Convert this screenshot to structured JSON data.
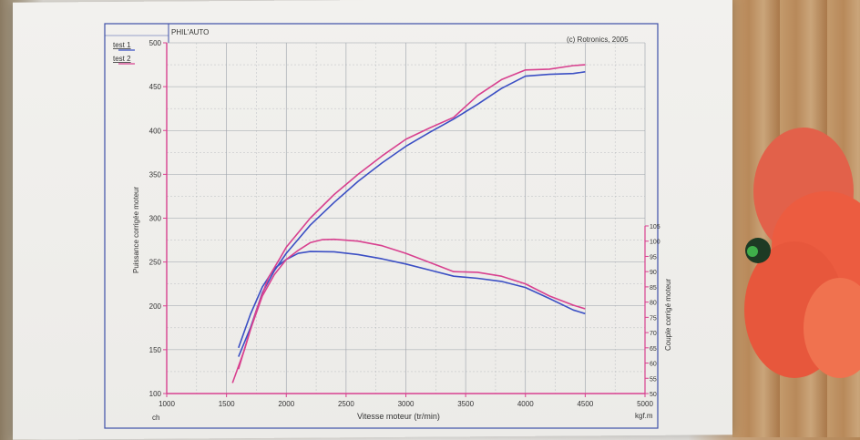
{
  "header": {
    "left": "PHIL'AUTO",
    "right": "(c) Rotronics, 2005"
  },
  "legend": [
    {
      "label": "test 1",
      "color": "#3b4fc4"
    },
    {
      "label": "test 2",
      "color": "#d8418f"
    }
  ],
  "colors": {
    "series1": "#3b4fc4",
    "series2": "#d8418f",
    "frame": "#3e4fa8",
    "grid": "#9aa0a8"
  },
  "chart_data": {
    "type": "line",
    "xlabel": "Vitesse moteur (tr/min)",
    "ylabel_left": "Puissance corrigée moteur",
    "ylabel_right": "Couple corrigé moteur",
    "unit_left": "ch",
    "unit_right": "kgf.m",
    "xlim": [
      1000,
      5000
    ],
    "ylim_left": [
      100,
      500
    ],
    "ylim_right": [
      50,
      105
    ],
    "x_ticks": [
      "1000",
      "1500",
      "2000",
      "2500",
      "3000",
      "3500",
      "4000",
      "4500",
      "5000"
    ],
    "y_left_ticks": [
      "100",
      "150",
      "200",
      "250",
      "300",
      "350",
      "400",
      "450",
      "500"
    ],
    "y_right_ticks": [
      "50",
      "55",
      "60",
      "65",
      "70",
      "75",
      "80",
      "85",
      "90",
      "95",
      "100",
      "105"
    ],
    "grid": true,
    "power_series": [
      {
        "name": "test 1",
        "axis": "left",
        "x": [
          1600,
          1700,
          1800,
          1900,
          2000,
          2200,
          2400,
          2600,
          2800,
          3000,
          3200,
          3400,
          3600,
          3800,
          4000,
          4200,
          4400,
          4500
        ],
        "y": [
          142,
          175,
          215,
          240,
          260,
          292,
          318,
          342,
          363,
          382,
          398,
          413,
          430,
          448,
          462,
          464,
          465,
          467
        ]
      },
      {
        "name": "test 2",
        "axis": "left",
        "x": [
          1550,
          1650,
          1750,
          1850,
          1950,
          2000,
          2200,
          2400,
          2600,
          2800,
          3000,
          3200,
          3400,
          3600,
          3800,
          4000,
          4200,
          4400,
          4500
        ],
        "y": [
          112,
          150,
          195,
          232,
          255,
          267,
          300,
          327,
          350,
          371,
          390,
          403,
          415,
          440,
          458,
          469,
          470,
          474,
          475
        ]
      }
    ],
    "torque_series": [
      {
        "name": "test 1",
        "axis": "right",
        "x": [
          1600,
          1700,
          1800,
          1900,
          2000,
          2100,
          2200,
          2400,
          2600,
          2800,
          3000,
          3200,
          3400,
          3600,
          3800,
          4000,
          4200,
          4400,
          4500
        ],
        "y": [
          65,
          76,
          85,
          91,
          94,
          96,
          96.6,
          96.5,
          95.6,
          94.2,
          92.5,
          90.5,
          88.5,
          87.8,
          86.8,
          84.8,
          81.2,
          77.4,
          76.2
        ]
      },
      {
        "name": "test 2",
        "axis": "right",
        "x": [
          1600,
          1700,
          1800,
          1900,
          2000,
          2100,
          2200,
          2300,
          2400,
          2600,
          2800,
          3000,
          3200,
          3400,
          3600,
          3800,
          4000,
          4200,
          4400,
          4500
        ],
        "y": [
          58,
          71,
          82,
          89,
          94,
          97,
          99.5,
          100.5,
          100.6,
          100,
          98.5,
          96,
          93,
          90,
          89.8,
          88.5,
          86,
          82,
          79,
          77.8
        ]
      }
    ]
  }
}
